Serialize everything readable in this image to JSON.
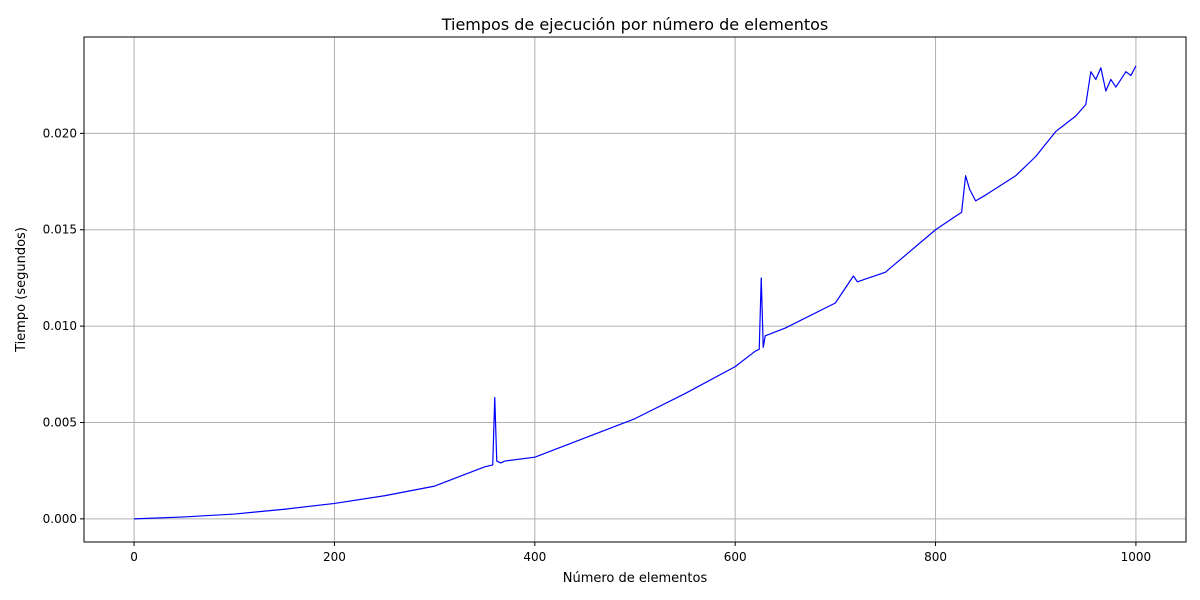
{
  "chart_data": {
    "type": "line",
    "title": "Tiempos de ejecución por número de elementos",
    "xlabel": "Número de elementos",
    "ylabel": "Tiempo (segundos)",
    "xlim": [
      -50,
      1050
    ],
    "ylim": [
      -0.0012,
      0.025
    ],
    "grid": true,
    "colors": {
      "line": "#0000ff",
      "grid": "#b0b0b0"
    },
    "xticks": [
      0,
      200,
      400,
      600,
      800,
      1000
    ],
    "xtick_labels": [
      "0",
      "200",
      "400",
      "600",
      "800",
      "1000"
    ],
    "yticks": [
      0.0,
      0.005,
      0.01,
      0.015,
      0.02
    ],
    "ytick_labels": [
      "0.000",
      "0.005",
      "0.010",
      "0.015",
      "0.020"
    ],
    "series": [
      {
        "color": "#0000ff",
        "x": [
          0,
          50,
          100,
          120,
          150,
          200,
          250,
          300,
          350,
          358,
          360,
          362,
          366,
          370,
          400,
          450,
          500,
          550,
          600,
          620,
          624,
          626,
          628,
          630,
          650,
          700,
          718,
          722,
          750,
          800,
          820,
          826,
          830,
          834,
          840,
          850,
          880,
          900,
          920,
          940,
          950,
          955,
          960,
          965,
          970,
          975,
          980,
          985,
          990,
          995,
          1000
        ],
        "y": [
          0.0,
          0.0001,
          0.00025,
          0.00035,
          0.0005,
          0.0008,
          0.0012,
          0.0017,
          0.0027,
          0.0028,
          0.0063,
          0.003,
          0.0029,
          0.003,
          0.0032,
          0.0042,
          0.0052,
          0.0065,
          0.0079,
          0.0087,
          0.0088,
          0.0125,
          0.0089,
          0.0095,
          0.0099,
          0.0112,
          0.0126,
          0.0123,
          0.0128,
          0.015,
          0.0157,
          0.0159,
          0.0178,
          0.0171,
          0.0165,
          0.0168,
          0.0178,
          0.0188,
          0.0201,
          0.0209,
          0.0215,
          0.0232,
          0.0228,
          0.0234,
          0.0222,
          0.0228,
          0.0224,
          0.0228,
          0.0232,
          0.023,
          0.0235
        ]
      }
    ]
  }
}
